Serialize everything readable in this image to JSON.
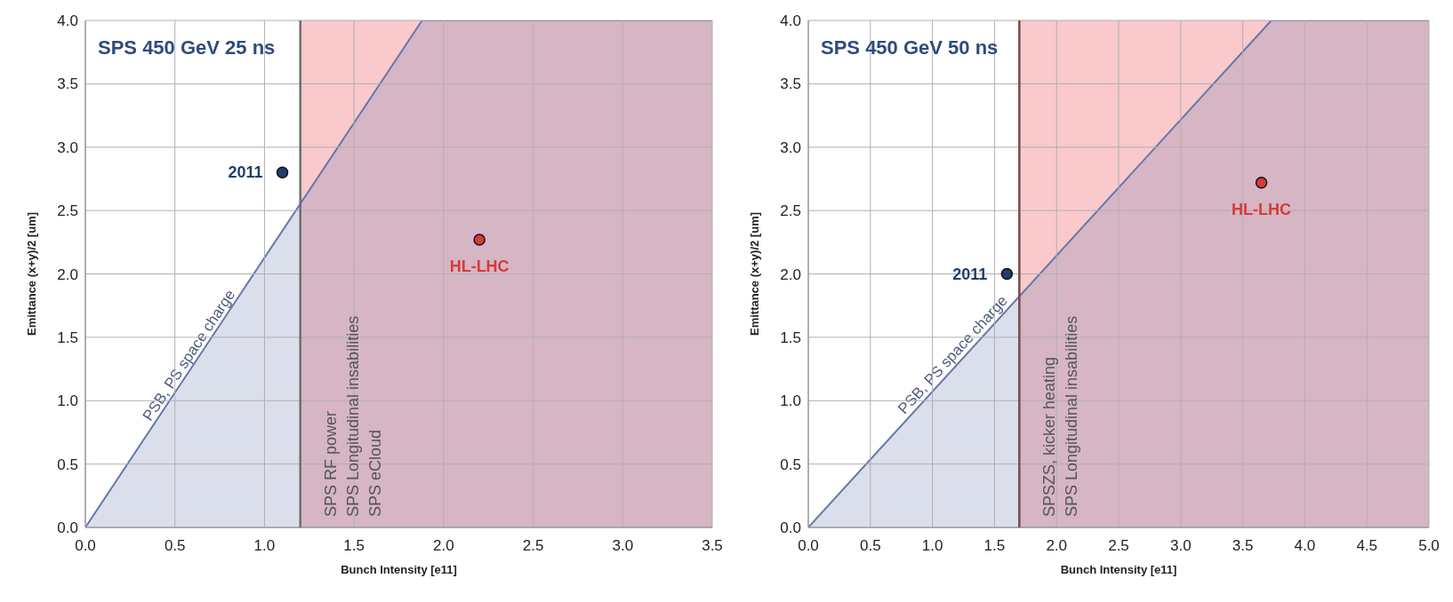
{
  "chart_data": [
    {
      "type": "area",
      "title": "SPS 450  GeV 25 ns",
      "xlabel": "Bunch Intensity [e11]",
      "ylabel": "Emittance (x+y)/2 [um]",
      "xlim": [
        0,
        3.5
      ],
      "ylim": [
        0,
        4
      ],
      "xticks": [
        {
          "value": 0,
          "label": "0.0"
        },
        {
          "value": 0.5,
          "label": "0.5"
        },
        {
          "value": 1,
          "label": "1.0"
        },
        {
          "value": 1.5,
          "label": "1.5"
        },
        {
          "value": 2,
          "label": "2.0"
        },
        {
          "value": 2.5,
          "label": "2.5"
        },
        {
          "value": 3,
          "label": "3.0"
        },
        {
          "value": 3.5,
          "label": "3.5"
        }
      ],
      "yticks": [
        {
          "value": 0,
          "label": "0.0"
        },
        {
          "value": 0.5,
          "label": "0.5"
        },
        {
          "value": 1,
          "label": "1.0"
        },
        {
          "value": 1.5,
          "label": "1.5"
        },
        {
          "value": 2,
          "label": "2.0"
        },
        {
          "value": 2.5,
          "label": "2.5"
        },
        {
          "value": 3,
          "label": "3.0"
        },
        {
          "value": 3.5,
          "label": "3.5"
        },
        {
          "value": 4,
          "label": "4.0"
        }
      ],
      "grid": true,
      "bands": [
        {
          "axis": "x",
          "from": 1.2,
          "to": 3.5,
          "color": "#f9c9cc",
          "label": "SPS RF power\nSPS Longitudinal insabilities\nSPS eCloud"
        }
      ],
      "ref_lines": [
        {
          "axis": "x",
          "value": 1.2,
          "color": "#6e6e6e"
        }
      ],
      "series": [
        {
          "name": "PSB, PS space charge",
          "color": "#6478aa",
          "x": [
            0,
            1.88,
            3.5
          ],
          "values": [
            0,
            4,
            4
          ]
        },
        {
          "type": "scatter",
          "name": "2011",
          "color": "#1f3f6e",
          "x": [
            1.1
          ],
          "values": [
            2.8
          ]
        },
        {
          "type": "scatter",
          "name": "HL-LHC",
          "color": "#d63a3a",
          "x": [
            2.2
          ],
          "values": [
            2.27
          ]
        }
      ]
    },
    {
      "type": "area",
      "title": "SPS 450  GeV 50 ns",
      "xlabel": "Bunch Intensity [e11]",
      "ylabel": "Emittance (x+y)/2 [um]",
      "xlim": [
        0,
        5
      ],
      "ylim": [
        0,
        4
      ],
      "xticks": [
        {
          "value": 0,
          "label": "0.0"
        },
        {
          "value": 0.5,
          "label": "0.5"
        },
        {
          "value": 1,
          "label": "1.0"
        },
        {
          "value": 1.5,
          "label": "1.5"
        },
        {
          "value": 2,
          "label": "2.0"
        },
        {
          "value": 2.5,
          "label": "2.5"
        },
        {
          "value": 3,
          "label": "3.0"
        },
        {
          "value": 3.5,
          "label": "3.5"
        },
        {
          "value": 4,
          "label": "4.0"
        },
        {
          "value": 4.5,
          "label": "4.5"
        },
        {
          "value": 5,
          "label": "5.0"
        }
      ],
      "yticks": [
        {
          "value": 0,
          "label": "0.0"
        },
        {
          "value": 0.5,
          "label": "0.5"
        },
        {
          "value": 1,
          "label": "1.0"
        },
        {
          "value": 1.5,
          "label": "1.5"
        },
        {
          "value": 2,
          "label": "2.0"
        },
        {
          "value": 2.5,
          "label": "2.5"
        },
        {
          "value": 3,
          "label": "3.0"
        },
        {
          "value": 3.5,
          "label": "3.5"
        },
        {
          "value": 4,
          "label": "4.0"
        }
      ],
      "grid": true,
      "bands": [
        {
          "axis": "x",
          "from": 1.7,
          "to": 5,
          "color": "#f9c9cc",
          "label": "SPSZS, kicker heating\nSPS Longitudinal insabilities"
        }
      ],
      "ref_lines": [
        {
          "axis": "x",
          "value": 1.7,
          "color": "#7a4a4a"
        }
      ],
      "series": [
        {
          "name": "PSB, PS space charge",
          "color": "#6478aa",
          "x": [
            0,
            3.73,
            5
          ],
          "values": [
            0,
            4,
            4
          ]
        },
        {
          "type": "scatter",
          "name": "2011",
          "color": "#1f3f6e",
          "x": [
            1.6
          ],
          "values": [
            2.0
          ]
        },
        {
          "type": "scatter",
          "name": "HL-LHC",
          "color": "#d63a3a",
          "x": [
            3.65
          ],
          "values": [
            2.72
          ]
        }
      ]
    }
  ]
}
